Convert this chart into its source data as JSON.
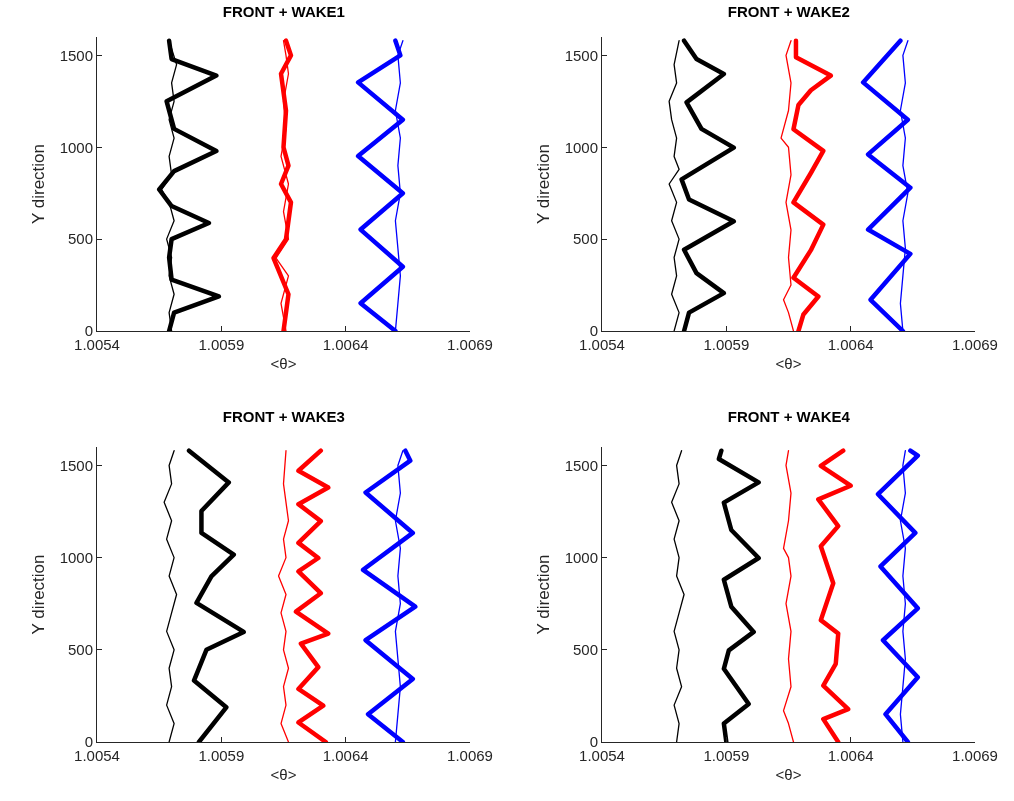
{
  "chart_data": [
    {
      "type": "line",
      "title": "FRONT + WAKE1",
      "xlabel": "<θ>",
      "ylabel": "Y direction",
      "xlim": [
        1.0054,
        1.0069
      ],
      "xticks": [
        1.0054,
        1.0059,
        1.0064,
        1.0069
      ],
      "ylim": [
        0,
        1600
      ],
      "yticks": [
        0,
        500,
        1000,
        1500
      ],
      "series": [
        {
          "color": "#000000",
          "x": [
            1.0057,
            1.00569,
            1.00571,
            1.00569,
            1.0057,
            1.00568,
            1.00571,
            1.00569,
            1.00566,
            1.0057,
            1.00569,
            1.00571,
            1.00569,
            1.00571,
            1.0057,
            1.00572,
            1.00569
          ],
          "values": [
            0,
            100,
            200,
            300,
            400,
            500,
            600,
            700,
            770,
            850,
            950,
            1050,
            1150,
            1250,
            1350,
            1450,
            1580
          ]
        },
        {
          "color": "#000000",
          "x": [
            1.00569,
            1.00571,
            1.00589,
            1.0057,
            1.00569,
            1.0057,
            1.00585,
            1.0057,
            1.00565,
            1.00571,
            1.00588,
            1.00571,
            1.00568,
            1.00588,
            1.0057,
            1.00569
          ],
          "values": [
            0,
            100,
            188,
            280,
            400,
            500,
            588,
            680,
            770,
            870,
            980,
            1100,
            1250,
            1390,
            1480,
            1580
          ]
        },
        {
          "color": "#ff0000",
          "x": [
            1.00616,
            1.00614,
            1.00617,
            1.00612,
            1.00617,
            1.00615,
            1.00617,
            1.00614,
            1.00616,
            1.00615,
            1.00617,
            1.00616,
            1.00615
          ],
          "values": [
            0,
            150,
            300,
            397,
            500,
            650,
            800,
            950,
            1100,
            1250,
            1400,
            1500,
            1580
          ]
        },
        {
          "color": "#ff0000",
          "x": [
            1.00615,
            1.00617,
            1.00611,
            1.00616,
            1.00618,
            1.00614,
            1.00617,
            1.00615,
            1.00616,
            1.00614,
            1.00618,
            1.00616
          ],
          "values": [
            0,
            200,
            397,
            500,
            700,
            800,
            900,
            1000,
            1200,
            1400,
            1500,
            1580
          ]
        },
        {
          "color": "#0000ff",
          "x": [
            1.0066,
            1.00661,
            1.00662,
            1.00661,
            1.0066,
            1.00662,
            1.00661,
            1.00662,
            1.0066,
            1.00662,
            1.00661,
            1.00663
          ],
          "values": [
            0,
            150,
            300,
            450,
            600,
            750,
            900,
            1050,
            1200,
            1350,
            1500,
            1580
          ]
        },
        {
          "color": "#0000ff",
          "x": [
            1.0066,
            1.00646,
            1.00663,
            1.00646,
            1.00663,
            1.00645,
            1.00663,
            1.00645,
            1.00662,
            1.0066
          ],
          "values": [
            0,
            151,
            350,
            552,
            750,
            952,
            1150,
            1353,
            1500,
            1580
          ]
        }
      ]
    },
    {
      "type": "line",
      "title": "FRONT + WAKE2",
      "xlabel": "<θ>",
      "ylabel": "Y direction",
      "xlim": [
        1.0054,
        1.0069
      ],
      "xticks": [
        1.0054,
        1.0059,
        1.0064,
        1.0069
      ],
      "ylim": [
        0,
        1600
      ],
      "yticks": [
        0,
        500,
        1000,
        1500
      ],
      "series": [
        {
          "color": "#000000",
          "x": [
            1.00569,
            1.00571,
            1.00568,
            1.0057,
            1.00569,
            1.00571,
            1.00568,
            1.0057,
            1.00567,
            1.00571,
            1.00569,
            1.0057,
            1.00568,
            1.00567,
            1.0057,
            1.00569,
            1.00571
          ],
          "values": [
            0,
            100,
            200,
            300,
            400,
            500,
            600,
            700,
            800,
            880,
            950,
            1050,
            1150,
            1250,
            1350,
            1450,
            1580
          ]
        },
        {
          "color": "#000000",
          "x": [
            1.00573,
            1.00575,
            1.00589,
            1.00578,
            1.00573,
            1.00593,
            1.00575,
            1.00572,
            1.00593,
            1.0058,
            1.00574,
            1.00589,
            1.00578,
            1.00573
          ],
          "values": [
            0,
            100,
            206,
            315,
            442,
            597,
            716,
            825,
            998,
            1100,
            1244,
            1399,
            1480,
            1580
          ]
        },
        {
          "color": "#ff0000",
          "x": [
            1.00617,
            1.00615,
            1.00613,
            1.00616,
            1.00615,
            1.00616,
            1.00614,
            1.00616,
            1.00615,
            1.00612,
            1.00615,
            1.00616,
            1.00614,
            1.00616
          ],
          "values": [
            0,
            100,
            170,
            250,
            400,
            550,
            700,
            850,
            1000,
            1050,
            1200,
            1350,
            1500,
            1580
          ]
        },
        {
          "color": "#ff0000",
          "x": [
            1.00619,
            1.00621,
            1.00627,
            1.00617,
            1.00624,
            1.00629,
            1.00617,
            1.00624,
            1.00629,
            1.00617,
            1.00619,
            1.00624,
            1.00632,
            1.00618,
            1.00618
          ],
          "values": [
            0,
            90,
            188,
            290,
            440,
            579,
            700,
            860,
            980,
            1098,
            1230,
            1310,
            1390,
            1490,
            1580
          ]
        },
        {
          "color": "#0000ff",
          "x": [
            1.00661,
            1.0066,
            1.00661,
            1.00662,
            1.00661,
            1.00663,
            1.00661,
            1.00662,
            1.0066,
            1.00662,
            1.00661,
            1.00663
          ],
          "values": [
            0,
            150,
            300,
            450,
            600,
            750,
            900,
            1050,
            1200,
            1350,
            1500,
            1580
          ]
        },
        {
          "color": "#0000ff",
          "x": [
            1.00661,
            1.00648,
            1.00664,
            1.00647,
            1.00664,
            1.00647,
            1.00663,
            1.00645,
            1.0066
          ],
          "values": [
            0,
            170,
            420,
            552,
            780,
            961,
            1150,
            1353,
            1580
          ]
        }
      ]
    },
    {
      "type": "line",
      "title": "FRONT + WAKE3",
      "xlabel": "<θ>",
      "ylabel": "Y direction",
      "xlim": [
        1.0054,
        1.0069
      ],
      "xticks": [
        1.0054,
        1.0059,
        1.0064,
        1.0069
      ],
      "ylim": [
        0,
        1600
      ],
      "yticks": [
        0,
        500,
        1000,
        1500
      ],
      "series": [
        {
          "color": "#000000",
          "x": [
            1.00569,
            1.00571,
            1.00568,
            1.0057,
            1.00569,
            1.00571,
            1.00568,
            1.0057,
            1.00572,
            1.00569,
            1.00571,
            1.00568,
            1.0057,
            1.00567,
            1.0057,
            1.00569,
            1.00571
          ],
          "values": [
            0,
            100,
            200,
            300,
            400,
            500,
            600,
            700,
            800,
            900,
            1000,
            1100,
            1200,
            1300,
            1400,
            1500,
            1580
          ]
        },
        {
          "color": "#000000",
          "x": [
            1.00581,
            1.00592,
            1.00579,
            1.00584,
            1.00599,
            1.0058,
            1.00586,
            1.00595,
            1.00582,
            1.00582,
            1.00593,
            1.00577
          ],
          "values": [
            0,
            188,
            333,
            500,
            597,
            755,
            898,
            1016,
            1134,
            1253,
            1408,
            1580
          ]
        },
        {
          "color": "#ff0000",
          "x": [
            1.00617,
            1.00614,
            1.00616,
            1.00615,
            1.00617,
            1.00615,
            1.00616,
            1.00614,
            1.00616,
            1.00613,
            1.00616,
            1.00615,
            1.00617,
            1.00615,
            1.00616
          ],
          "values": [
            0,
            100,
            200,
            300,
            400,
            500,
            600,
            700,
            800,
            900,
            1000,
            1100,
            1200,
            1400,
            1580
          ]
        },
        {
          "color": "#ff0000",
          "x": [
            1.00632,
            1.00621,
            1.00631,
            1.00621,
            1.00629,
            1.00622,
            1.00633,
            1.0062,
            1.0063,
            1.00621,
            1.00629,
            1.00621,
            1.0063,
            1.00621,
            1.00633,
            1.00621,
            1.0063
          ],
          "values": [
            0,
            106,
            197,
            288,
            406,
            534,
            588,
            707,
            807,
            925,
            998,
            1080,
            1198,
            1290,
            1380,
            1471,
            1580
          ]
        },
        {
          "color": "#0000ff",
          "x": [
            1.0066,
            1.00661,
            1.00662,
            1.00661,
            1.0066,
            1.00662,
            1.00661,
            1.00662,
            1.0066,
            1.00662,
            1.00661,
            1.00663
          ],
          "values": [
            0,
            150,
            300,
            450,
            600,
            750,
            900,
            1050,
            1200,
            1350,
            1500,
            1580
          ]
        },
        {
          "color": "#0000ff",
          "x": [
            1.00663,
            1.00649,
            1.00667,
            1.00648,
            1.00668,
            1.00647,
            1.00667,
            1.00648,
            1.00666,
            1.00664
          ],
          "values": [
            0,
            151,
            342,
            552,
            734,
            934,
            1134,
            1353,
            1526,
            1580
          ]
        }
      ]
    },
    {
      "type": "line",
      "title": "FRONT + WAKE4",
      "xlabel": "<θ>",
      "ylabel": "Y direction",
      "xlim": [
        1.0054,
        1.0069
      ],
      "xticks": [
        1.0054,
        1.0059,
        1.0064,
        1.0069
      ],
      "ylim": [
        0,
        1600
      ],
      "yticks": [
        0,
        500,
        1000,
        1500
      ],
      "series": [
        {
          "color": "#000000",
          "x": [
            1.0057,
            1.00571,
            1.00569,
            1.00572,
            1.0057,
            1.00571,
            1.00569,
            1.00571,
            1.00573,
            1.0057,
            1.00571,
            1.00569,
            1.00571,
            1.00568,
            1.00571,
            1.0057,
            1.00572
          ],
          "values": [
            0,
            100,
            200,
            300,
            400,
            500,
            600,
            700,
            800,
            900,
            1000,
            1100,
            1200,
            1300,
            1400,
            1500,
            1580
          ]
        },
        {
          "color": "#000000",
          "x": [
            1.0059,
            1.00589,
            1.00599,
            1.00589,
            1.00591,
            1.00601,
            1.00592,
            1.00589,
            1.00603,
            1.00592,
            1.00589,
            1.00603,
            1.00587,
            1.00588
          ],
          "values": [
            0,
            100,
            206,
            397,
            497,
            597,
            734,
            880,
            998,
            1150,
            1298,
            1408,
            1535,
            1580
          ]
        },
        {
          "color": "#ff0000",
          "x": [
            1.00617,
            1.00615,
            1.00613,
            1.00616,
            1.00615,
            1.00616,
            1.00614,
            1.00616,
            1.00615,
            1.00613,
            1.00615,
            1.00616,
            1.00614,
            1.00615
          ],
          "values": [
            0,
            100,
            170,
            300,
            450,
            600,
            750,
            900,
            1000,
            1050,
            1200,
            1350,
            1500,
            1580
          ]
        },
        {
          "color": "#ff0000",
          "x": [
            1.00635,
            1.00629,
            1.00639,
            1.00629,
            1.00634,
            1.00635,
            1.00628,
            1.00633,
            1.00628,
            1.00635,
            1.00627,
            1.0064,
            1.00628,
            1.00637
          ],
          "values": [
            0,
            124,
            178,
            306,
            424,
            588,
            661,
            861,
            1062,
            1171,
            1316,
            1390,
            1498,
            1580
          ]
        },
        {
          "color": "#0000ff",
          "x": [
            1.00661,
            1.0066,
            1.00661,
            1.00662,
            1.00661,
            1.00662,
            1.00661,
            1.00662,
            1.0066,
            1.00662,
            1.00661,
            1.00662
          ],
          "values": [
            0,
            150,
            300,
            450,
            600,
            750,
            900,
            1050,
            1200,
            1350,
            1500,
            1580
          ]
        },
        {
          "color": "#0000ff",
          "x": [
            1.00663,
            1.00654,
            1.00667,
            1.00653,
            1.00667,
            1.00652,
            1.00666,
            1.00651,
            1.00667,
            1.00664
          ],
          "values": [
            0,
            151,
            351,
            552,
            725,
            952,
            1134,
            1344,
            1553,
            1580
          ]
        }
      ]
    }
  ]
}
